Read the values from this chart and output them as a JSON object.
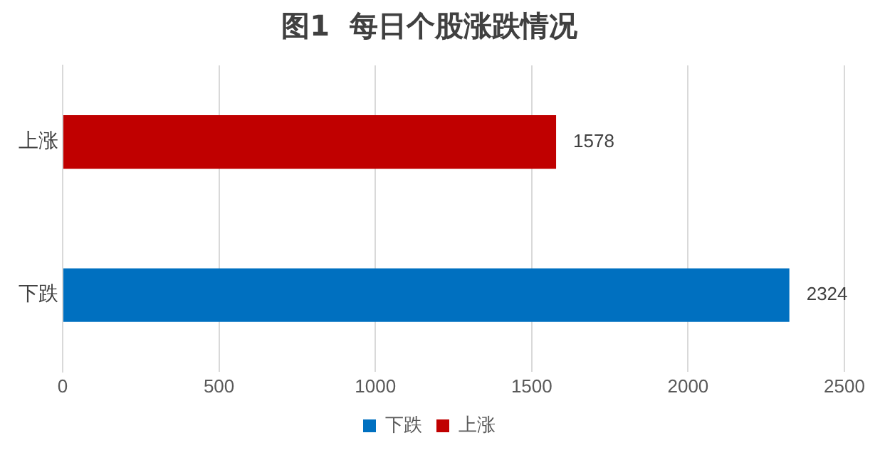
{
  "chart_data": {
    "type": "bar",
    "title": "图1  每日个股涨跌情况",
    "orientation": "horizontal",
    "categories": [
      "上涨",
      "下跌"
    ],
    "series": [
      {
        "name": "下跌",
        "color": "#0070c0",
        "values": [
          null,
          2324
        ]
      },
      {
        "name": "上涨",
        "color": "#c00000",
        "values": [
          1578,
          null
        ]
      }
    ],
    "xlim": [
      0,
      2500
    ],
    "xticks": [
      0,
      500,
      1000,
      1500,
      2000,
      2500
    ],
    "grid": "x",
    "legend": "bottom",
    "data_labels": true
  }
}
